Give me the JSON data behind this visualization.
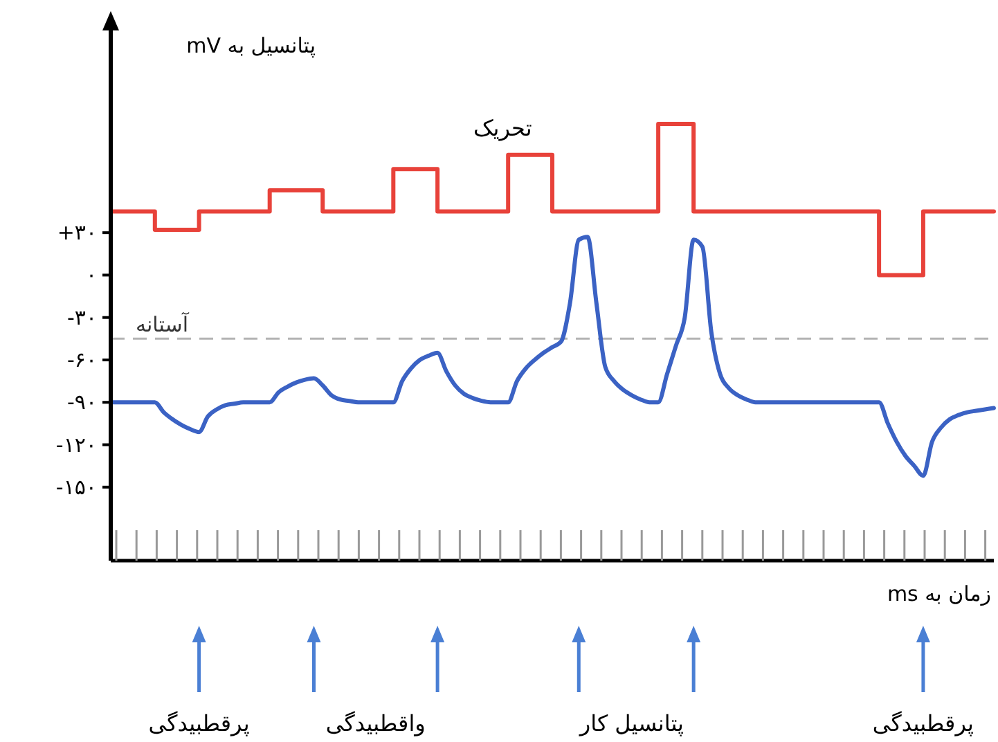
{
  "chart_data": {
    "type": "line",
    "ylabel": "پتانسیل به mV",
    "xlabel": "زمان به ms",
    "categories": [
      null,
      null,
      null,
      null,
      null,
      null,
      null,
      null,
      null,
      null,
      null,
      null,
      null,
      null,
      null,
      null,
      null,
      null,
      null,
      null,
      null,
      null,
      null,
      null,
      null,
      null,
      null,
      null,
      null,
      null,
      null,
      null,
      null,
      null,
      null,
      null,
      null,
      null,
      null,
      null,
      null,
      null,
      null,
      null,
      null,
      null,
      null,
      null,
      null,
      null,
      null,
      null,
      null,
      null,
      null,
      null,
      null,
      null,
      null,
      null,
      null,
      null,
      null,
      null,
      null,
      null,
      null,
      null,
      null,
      null,
      null,
      null,
      null,
      null,
      null,
      null,
      null,
      null,
      null,
      null,
      null,
      null,
      null,
      null,
      null,
      null,
      null,
      null,
      null,
      null,
      null,
      null,
      null,
      null,
      null,
      null,
      null,
      null,
      null,
      null,
      null
    ],
    "ylim": [
      -202,
      175
    ],
    "yticks": [
      {
        "value": 30,
        "label": "+۳۰"
      },
      {
        "value": 0,
        "label": "۰"
      },
      {
        "value": -30,
        "label": "-۳۰"
      },
      {
        "value": -60,
        "label": "-۶۰"
      },
      {
        "value": -90,
        "label": "-۹۰"
      },
      {
        "value": -120,
        "label": "-۱۲۰"
      },
      {
        "value": -150,
        "label": "-۱۵۰"
      }
    ],
    "tick_labels": "y",
    "grid": false,
    "marker": "none",
    "series": [
      {
        "type": "step",
        "color": "#e8423a",
        "values": [
          45,
          45,
          45,
          45,
          45,
          32,
          32,
          32,
          32,
          32,
          45,
          45,
          45,
          45,
          45,
          45,
          45,
          45,
          60,
          60,
          60,
          60,
          60,
          60,
          45,
          45,
          45,
          45,
          45,
          45,
          45,
          45,
          75,
          75,
          75,
          75,
          75,
          45,
          45,
          45,
          45,
          45,
          45,
          45,
          45,
          85,
          85,
          85,
          85,
          85,
          45,
          45,
          45,
          45,
          45,
          45,
          45,
          45,
          45,
          45,
          45,
          45,
          107,
          107,
          107,
          107,
          45,
          45,
          45,
          45,
          45,
          45,
          45,
          45,
          45,
          45,
          45,
          45,
          45,
          45,
          45,
          45,
          45,
          45,
          45,
          45,
          45,
          0,
          0,
          0,
          0,
          0,
          45,
          45,
          45,
          45,
          45,
          45,
          45,
          45,
          45
        ]
      },
      {
        "type": "line",
        "color": "#3b62c4",
        "values": [
          -90,
          -90,
          -90,
          -90,
          -90,
          -90,
          -97,
          -102,
          -106,
          -109,
          -111,
          -100,
          -95,
          -92,
          -91,
          -90,
          -90,
          -90,
          -90,
          -83,
          -79,
          -76,
          -74,
          -73,
          -78,
          -85,
          -88,
          -89,
          -90,
          -90,
          -90,
          -90,
          -90,
          -75,
          -66,
          -60,
          -57,
          -55,
          -68,
          -78,
          -84,
          -87,
          -89,
          -90,
          -90,
          -90,
          -75,
          -66,
          -60,
          -55,
          -51,
          -47,
          -20,
          25,
          27,
          -20,
          -65,
          -75,
          -81,
          -85,
          -88,
          -90,
          -90,
          -70,
          -50,
          -30,
          25,
          20,
          -40,
          -70,
          -80,
          -85,
          -88,
          -90,
          -90,
          -90,
          -90,
          -90,
          -90,
          -90,
          -90,
          -90,
          -90,
          -90,
          -90,
          -90,
          -90,
          -90,
          -105,
          -118,
          -128,
          -135,
          -142,
          -118,
          -108,
          -102,
          -99,
          -97,
          -96,
          -95,
          -94
        ]
      }
    ],
    "ref_lines": [
      {
        "axis": "y",
        "value": -45,
        "label": "آستانه",
        "color": "#b3b3b3",
        "line_style": "dashed"
      }
    ],
    "annotations": [
      "تحریک",
      "پرقطبیدگی",
      "واقطبیدگی",
      "پتانسیل کار",
      "پرقطبیدگی"
    ]
  }
}
